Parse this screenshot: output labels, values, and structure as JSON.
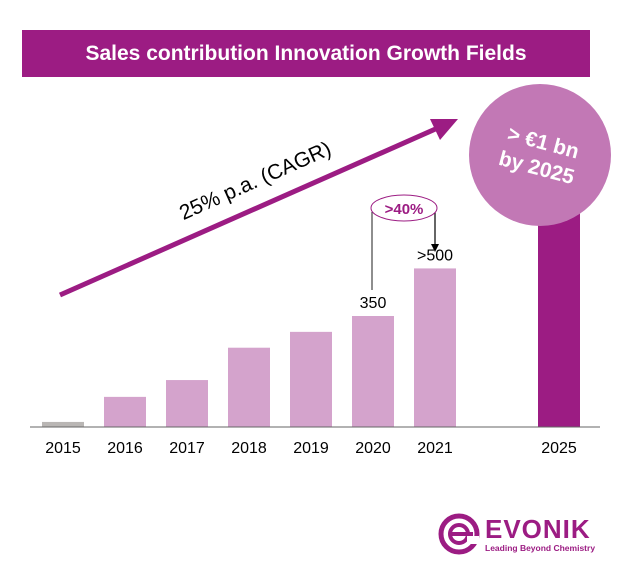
{
  "header": {
    "title": "Sales contribution Innovation Growth Fields"
  },
  "chart_data": {
    "type": "bar",
    "title": "Sales contribution Innovation Growth Fields",
    "categories": [
      "2015",
      "2016",
      "2017",
      "2018",
      "2019",
      "2020",
      "2021",
      "2025"
    ],
    "values": [
      16,
      95,
      148,
      250,
      300,
      350,
      500,
      1000
    ],
    "data_labels": {
      "2020": "350",
      "2021": ">500"
    },
    "ylim": [
      0,
      1000
    ],
    "annotations": {
      "cagr": "25% p.a. (CAGR)",
      "growth": ">40%",
      "target": "> €1 bn",
      "target_line2": "by 2025"
    },
    "colors": {
      "2015": "#b9b6b4",
      "default": "#d4a3cc",
      "2025": "#9c1c83",
      "circle": "#c278b5"
    }
  },
  "logo": {
    "name": "EVONIK",
    "tagline": "Leading Beyond Chemistry"
  }
}
